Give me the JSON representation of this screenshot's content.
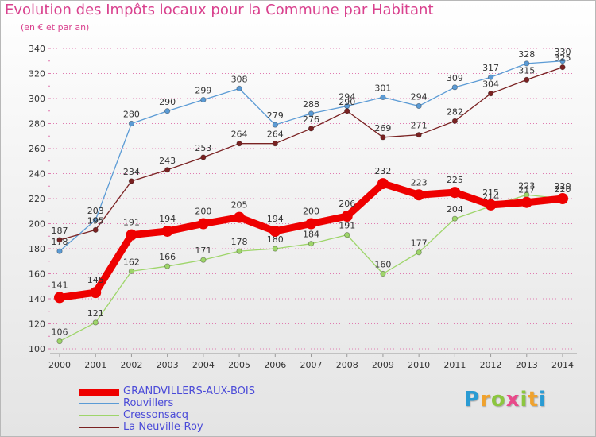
{
  "header": {
    "title": "Evolution des Impôts locaux pour la Commune par Habitant",
    "subtitle": "(en € et par an)"
  },
  "logo": {
    "text": "Proxiti",
    "letters": [
      "P",
      "r",
      "o",
      "x",
      "i",
      "t",
      "i"
    ]
  },
  "colors": {
    "title": "#d9418e",
    "grid": "#e07ab0",
    "axis_text": "#333333",
    "legend_text": "#4b4bd8"
  },
  "chart_data": {
    "type": "line",
    "title": "Evolution des Impôts locaux pour la Commune par Habitant",
    "subtitle": "(en € et par an)",
    "x": [
      "2000",
      "2001",
      "2002",
      "2003",
      "2004",
      "2005",
      "2006",
      "2007",
      "2008",
      "2009",
      "2010",
      "2011",
      "2012",
      "2013",
      "2014"
    ],
    "yticks": [
      100,
      120,
      140,
      160,
      180,
      200,
      220,
      240,
      260,
      280,
      300,
      320,
      340
    ],
    "ylim": [
      100,
      340
    ],
    "grid": "horizontal dotted",
    "legend_position": "bottom-left",
    "series": [
      {
        "name": "GRANDVILLERS-AUX-BOIS",
        "color": "#ee0000",
        "values": [
          141,
          145,
          191,
          194,
          200,
          205,
          194,
          200,
          206,
          232,
          223,
          225,
          215,
          217,
          220
        ]
      },
      {
        "name": "Rouvillers",
        "color": "#5b9bd5",
        "values": [
          178,
          203,
          280,
          290,
          299,
          308,
          279,
          288,
          294,
          301,
          294,
          309,
          317,
          328,
          330
        ]
      },
      {
        "name": "Cressonsacq",
        "color": "#9ed56a",
        "values": [
          106,
          121,
          162,
          166,
          171,
          178,
          180,
          184,
          191,
          160,
          177,
          204,
          214,
          223,
          220
        ]
      },
      {
        "name": "La Neuville-Roy",
        "color": "#7a2222",
        "values": [
          187,
          195,
          234,
          243,
          253,
          264,
          264,
          276,
          290,
          269,
          271,
          282,
          304,
          315,
          325
        ]
      }
    ]
  }
}
